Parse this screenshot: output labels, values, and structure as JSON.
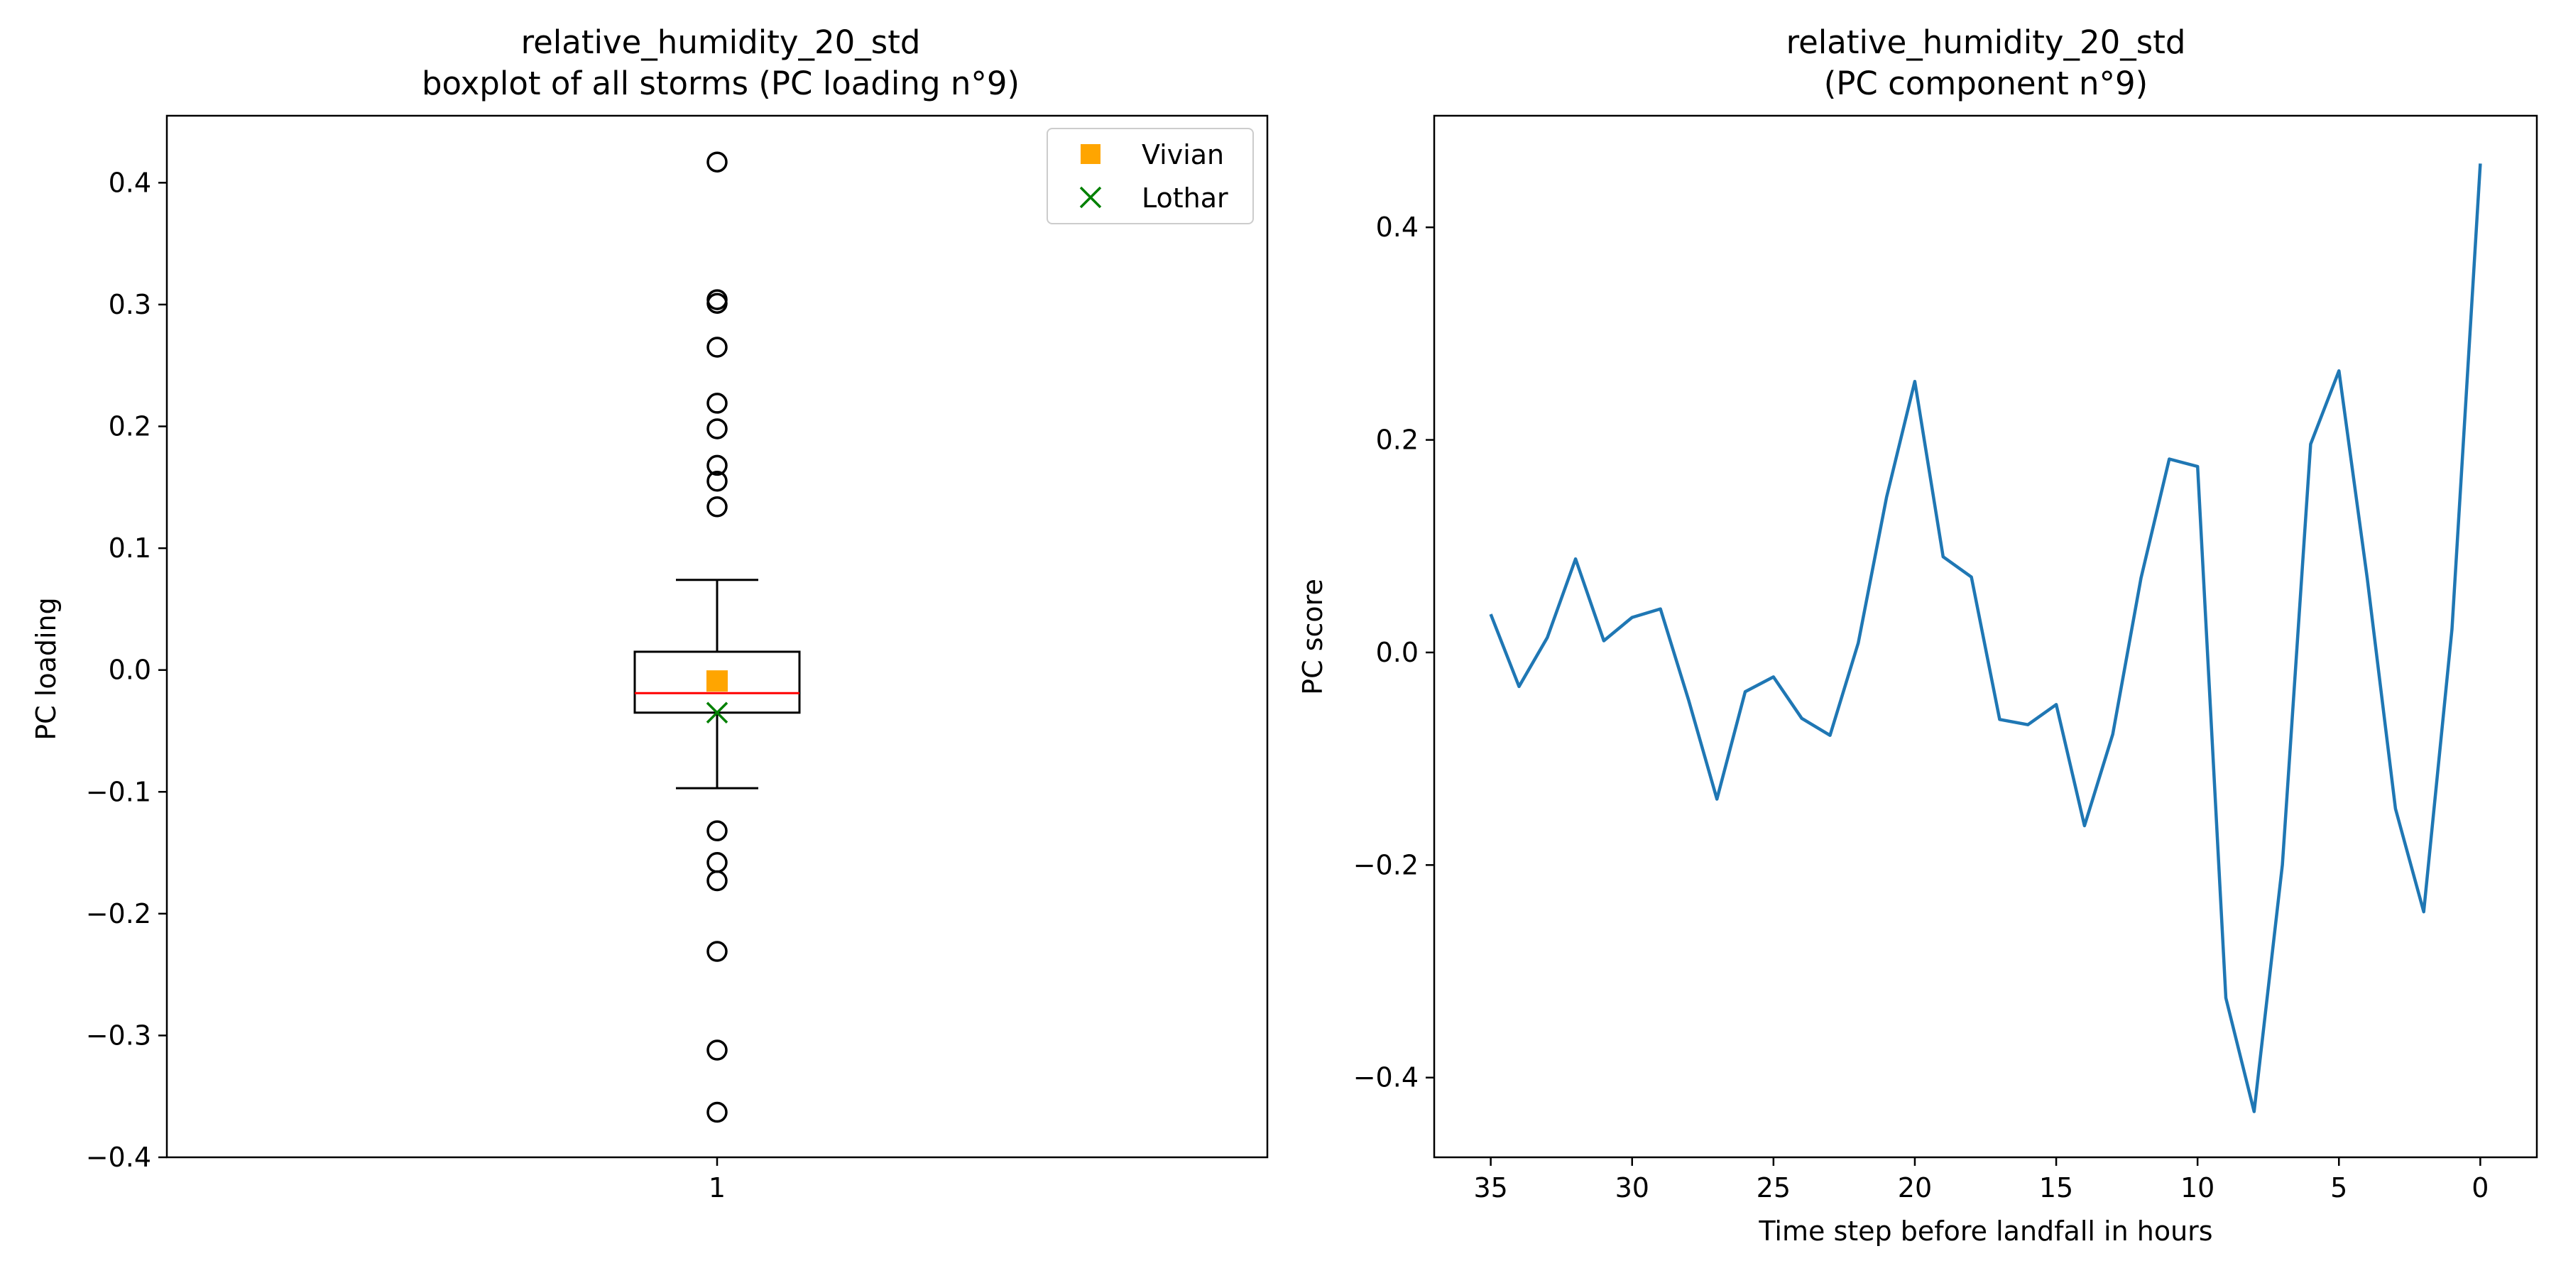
{
  "chart_data": [
    {
      "type": "boxplot",
      "title_line1": "relative_humidity_20_std",
      "title_line2": "boxplot of all storms (PC loading n°9)",
      "ylabel": "PC loading",
      "xlabel": "",
      "ylim": [
        -0.4,
        0.455
      ],
      "yticks": [
        -0.4,
        -0.3,
        -0.2,
        -0.1,
        0.0,
        0.1,
        0.2,
        0.3,
        0.4
      ],
      "ytick_labels": [
        "−0.4",
        "−0.3",
        "−0.2",
        "−0.1",
        "0.0",
        "0.1",
        "0.2",
        "0.3",
        "0.4"
      ],
      "xtick_labels": [
        "1"
      ],
      "box": {
        "q1": -0.035,
        "median": -0.019,
        "q3": 0.015,
        "whisker_low": -0.097,
        "whisker_high": 0.074
      },
      "outliers": [
        0.417,
        0.304,
        0.301,
        0.265,
        0.219,
        0.198,
        0.168,
        0.155,
        0.134,
        -0.132,
        -0.158,
        -0.173,
        -0.231,
        -0.312,
        -0.363
      ],
      "markers": [
        {
          "name": "Vivian",
          "value": -0.009,
          "color": "#ffa500",
          "symbol": "square"
        },
        {
          "name": "Lothar",
          "value": -0.035,
          "color": "#008000",
          "symbol": "x"
        }
      ],
      "legend": {
        "position": "top-right",
        "entries": [
          "Vivian",
          "Lothar"
        ]
      },
      "colors": {
        "box": "#000000",
        "median": "#ff0000"
      },
      "grid": false
    },
    {
      "type": "line",
      "title_line1": "relative_humidity_20_std",
      "title_line2": "(PC component n°9)",
      "ylabel": "PC score",
      "xlabel": "Time step before landfall in hours",
      "xlim": [
        37,
        -2
      ],
      "x_inverted": true,
      "ylim": [
        -0.475,
        0.505
      ],
      "xticks": [
        35,
        30,
        25,
        20,
        15,
        10,
        5,
        0
      ],
      "xtick_labels": [
        "35",
        "30",
        "25",
        "20",
        "15",
        "10",
        "5",
        "0"
      ],
      "yticks": [
        -0.4,
        -0.2,
        0.0,
        0.2,
        0.4
      ],
      "ytick_labels": [
        "−0.4",
        "−0.2",
        "0.0",
        "0.2",
        "0.4"
      ],
      "series": [
        {
          "color": "#1f77b4",
          "x": [
            35,
            34,
            33,
            32,
            31,
            30,
            29,
            28,
            27,
            26,
            25,
            24,
            23,
            22,
            21,
            20,
            19,
            18,
            17,
            16,
            15,
            14,
            13,
            12,
            11,
            10,
            9,
            8,
            7,
            6,
            5,
            4,
            3,
            2,
            1,
            0
          ],
          "y": [
            0.036,
            -0.032,
            0.014,
            0.088,
            0.011,
            0.033,
            0.041,
            -0.045,
            -0.138,
            -0.037,
            -0.023,
            -0.062,
            -0.078,
            0.009,
            0.146,
            0.255,
            0.09,
            0.071,
            -0.063,
            -0.068,
            -0.049,
            -0.163,
            -0.077,
            0.07,
            0.182,
            0.175,
            -0.325,
            -0.432,
            -0.2,
            0.196,
            0.265,
            0.07,
            -0.147,
            -0.244,
            0.022,
            0.46
          ]
        }
      ],
      "grid": false
    }
  ]
}
